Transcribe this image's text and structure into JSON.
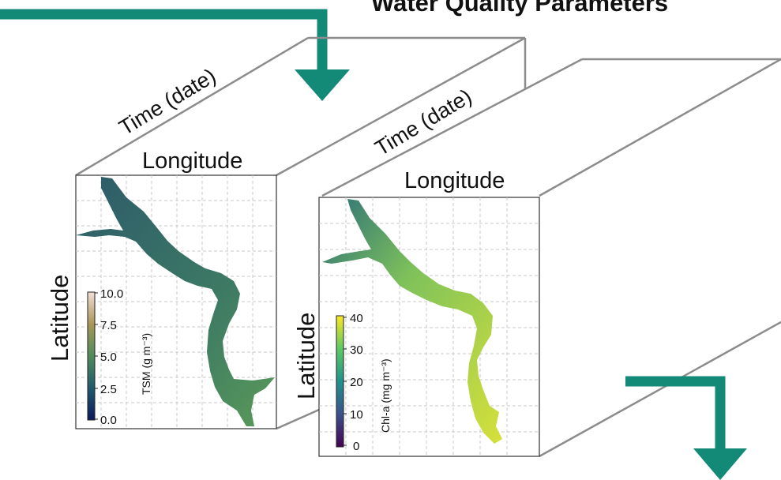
{
  "title": "Water Quality Parameters",
  "colors": {
    "arrow": "#138a78",
    "cube_edge": "#8c8c8c",
    "grid": "#c8c8c8"
  },
  "cube_tsm": {
    "time_label": "Time (date)",
    "longitude_label": "Longitude",
    "latitude_label": "Latitude",
    "colorbar": {
      "label": "TSM (g m⁻³)",
      "ticks": [
        "10.0",
        "7.5",
        "5.0",
        "2.5",
        "0.0"
      ],
      "min": 0,
      "max": 10,
      "colormap": "batlow"
    }
  },
  "cube_chla": {
    "time_label": "Time (date)",
    "longitude_label": "Longitude",
    "latitude_label": "Latitude",
    "colorbar": {
      "label": "Chl-a (mg m⁻³)",
      "ticks": [
        "40",
        "30",
        "20",
        "10",
        "0"
      ],
      "min": 0,
      "max": 40,
      "colormap": "viridis"
    }
  }
}
